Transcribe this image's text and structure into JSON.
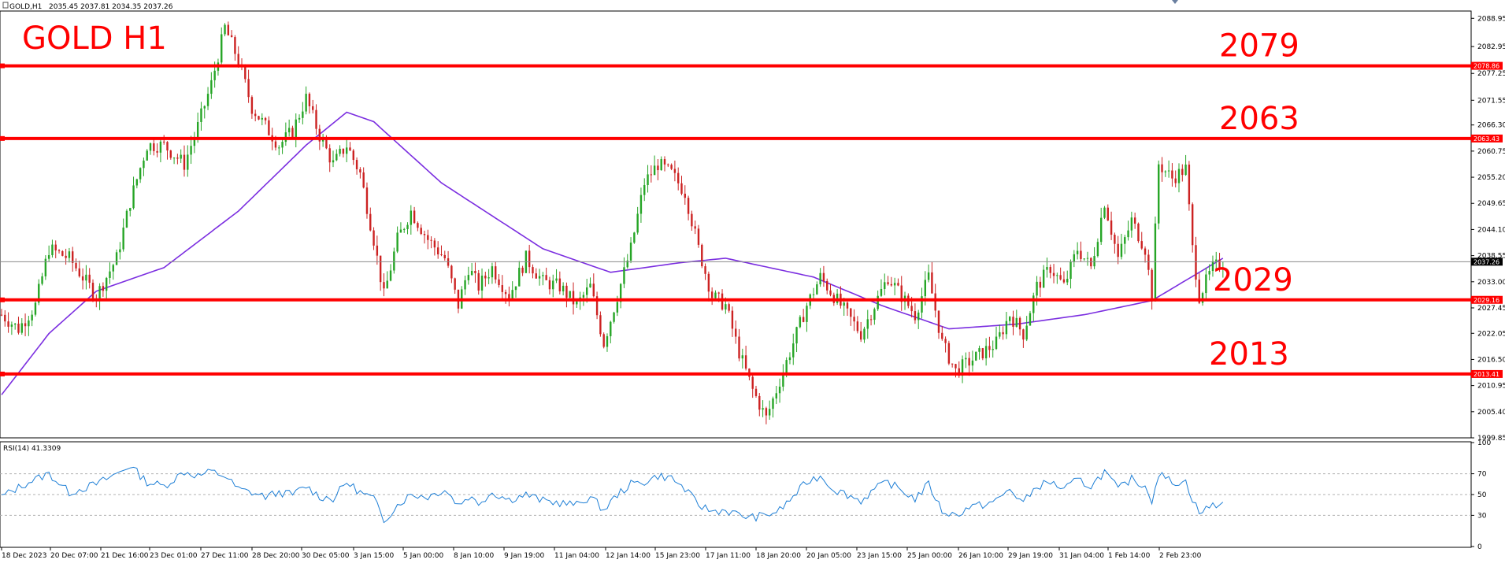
{
  "header": {
    "symbol": "GOLD,H1",
    "ohlc": "2035.45 2037.81 2034.35 2037.26"
  },
  "title": "GOLD H1",
  "levels": [
    {
      "label": "2079",
      "value": 2078.86,
      "tag": "2078.86"
    },
    {
      "label": "2063",
      "value": 2063.43,
      "tag": "2063.43"
    },
    {
      "label": "2029",
      "value": 2029.16,
      "tag": "2029.16"
    },
    {
      "label": "2013",
      "value": 2013.41,
      "tag": "2013.41"
    }
  ],
  "current_price": {
    "value": 2037.26,
    "tag": "2037.26"
  },
  "rsi": {
    "label": "RSI(14) 41.3309",
    "levels": [
      30,
      50,
      70
    ]
  },
  "colors": {
    "bull": "#26a526",
    "bear": "#cc2222",
    "ma": "#7b2ee0",
    "level": "#ff0000",
    "rsi": "#1e7fd6",
    "grid": "#b0b0b0"
  },
  "chart_data": {
    "type": "candlestick",
    "title": "GOLD H1",
    "ylim": [
      1999.85,
      2090.5
    ],
    "y_ticks": [
      "2088.95",
      "2082.95",
      "2077.25",
      "2071.55",
      "2066.30",
      "2060.75",
      "2055.20",
      "2049.65",
      "2044.10",
      "2038.55",
      "2033.00",
      "2027.45",
      "2022.05",
      "2016.50",
      "2010.95",
      "2005.40",
      "1999.85"
    ],
    "x_ticks": [
      "18 Dec 2023",
      "20 Dec 07:00",
      "21 Dec 16:00",
      "23 Dec 01:00",
      "27 Dec 11:00",
      "28 Dec 20:00",
      "30 Dec 05:00",
      "3 Jan 15:00",
      "5 Jan 00:00",
      "8 Jan 10:00",
      "9 Jan 19:00",
      "11 Jan 04:00",
      "12 Jan 14:00",
      "15 Jan 23:00",
      "17 Jan 11:00",
      "18 Jan 20:00",
      "20 Jan 05:00",
      "23 Jan 15:00",
      "25 Jan 00:00",
      "26 Jan 10:00",
      "29 Jan 19:00",
      "31 Jan 04:00",
      "1 Feb 14:00",
      "2 Feb 23:00"
    ],
    "close_path": [
      [
        0,
        2026
      ],
      [
        5,
        2023
      ],
      [
        10,
        2028
      ],
      [
        14,
        2040
      ],
      [
        20,
        2038
      ],
      [
        24,
        2034
      ],
      [
        28,
        2030
      ],
      [
        34,
        2038
      ],
      [
        38,
        2050
      ],
      [
        43,
        2062
      ],
      [
        48,
        2062
      ],
      [
        54,
        2058
      ],
      [
        58,
        2066
      ],
      [
        62,
        2075
      ],
      [
        66,
        2087
      ],
      [
        70,
        2080
      ],
      [
        74,
        2070
      ],
      [
        78,
        2066
      ],
      [
        82,
        2062
      ],
      [
        86,
        2065
      ],
      [
        90,
        2072
      ],
      [
        94,
        2064
      ],
      [
        98,
        2058
      ],
      [
        102,
        2062
      ],
      [
        106,
        2056
      ],
      [
        110,
        2042
      ],
      [
        113,
        2030
      ],
      [
        117,
        2042
      ],
      [
        121,
        2048
      ],
      [
        126,
        2042
      ],
      [
        131,
        2038
      ],
      [
        135,
        2028
      ],
      [
        138,
        2036
      ],
      [
        141,
        2032
      ],
      [
        145,
        2036
      ],
      [
        150,
        2030
      ],
      [
        155,
        2038
      ],
      [
        160,
        2033
      ],
      [
        165,
        2032
      ],
      [
        170,
        2028
      ],
      [
        174,
        2032
      ],
      [
        178,
        2020
      ],
      [
        182,
        2030
      ],
      [
        186,
        2040
      ],
      [
        190,
        2054
      ],
      [
        194,
        2058
      ],
      [
        198,
        2056
      ],
      [
        202,
        2052
      ],
      [
        206,
        2040
      ],
      [
        210,
        2030
      ],
      [
        214,
        2028
      ],
      [
        218,
        2018
      ],
      [
        222,
        2010
      ],
      [
        226,
        2004
      ],
      [
        230,
        2012
      ],
      [
        234,
        2020
      ],
      [
        238,
        2028
      ],
      [
        242,
        2034
      ],
      [
        246,
        2030
      ],
      [
        250,
        2026
      ],
      [
        254,
        2022
      ],
      [
        258,
        2028
      ],
      [
        262,
        2034
      ],
      [
        266,
        2030
      ],
      [
        270,
        2026
      ],
      [
        274,
        2034
      ],
      [
        278,
        2020
      ],
      [
        282,
        2014
      ],
      [
        286,
        2016
      ],
      [
        290,
        2018
      ],
      [
        294,
        2020
      ],
      [
        298,
        2026
      ],
      [
        302,
        2022
      ],
      [
        306,
        2032
      ],
      [
        310,
        2036
      ],
      [
        314,
        2032
      ],
      [
        318,
        2040
      ],
      [
        322,
        2036
      ],
      [
        326,
        2050
      ],
      [
        330,
        2038
      ],
      [
        334,
        2046
      ],
      [
        338,
        2040
      ],
      [
        340,
        2030
      ],
      [
        342,
        2058
      ],
      [
        346,
        2055
      ],
      [
        350,
        2057
      ],
      [
        352,
        2040
      ],
      [
        354,
        2030
      ],
      [
        358,
        2036
      ],
      [
        361,
        2037
      ]
    ],
    "ma_path": [
      [
        0,
        2009
      ],
      [
        14,
        2022
      ],
      [
        28,
        2031
      ],
      [
        48,
        2036
      ],
      [
        70,
        2048
      ],
      [
        90,
        2062
      ],
      [
        102,
        2069
      ],
      [
        110,
        2067
      ],
      [
        130,
        2054
      ],
      [
        160,
        2040
      ],
      [
        180,
        2035
      ],
      [
        200,
        2037
      ],
      [
        214,
        2038
      ],
      [
        240,
        2034
      ],
      [
        260,
        2028
      ],
      [
        280,
        2023
      ],
      [
        300,
        2024
      ],
      [
        320,
        2026
      ],
      [
        340,
        2029
      ],
      [
        361,
        2038
      ]
    ],
    "rsi_path": [
      [
        0,
        48
      ],
      [
        8,
        62
      ],
      [
        14,
        70
      ],
      [
        20,
        52
      ],
      [
        28,
        60
      ],
      [
        34,
        70
      ],
      [
        38,
        78
      ],
      [
        43,
        62
      ],
      [
        48,
        58
      ],
      [
        54,
        72
      ],
      [
        58,
        68
      ],
      [
        62,
        72
      ],
      [
        66,
        68
      ],
      [
        70,
        55
      ],
      [
        74,
        52
      ],
      [
        78,
        48
      ],
      [
        82,
        52
      ],
      [
        86,
        50
      ],
      [
        90,
        58
      ],
      [
        94,
        48
      ],
      [
        98,
        46
      ],
      [
        102,
        62
      ],
      [
        106,
        52
      ],
      [
        110,
        46
      ],
      [
        113,
        25
      ],
      [
        117,
        40
      ],
      [
        121,
        50
      ],
      [
        126,
        48
      ],
      [
        131,
        55
      ],
      [
        135,
        40
      ],
      [
        138,
        48
      ],
      [
        141,
        42
      ],
      [
        145,
        52
      ],
      [
        150,
        45
      ],
      [
        155,
        50
      ],
      [
        160,
        44
      ],
      [
        165,
        42
      ],
      [
        170,
        40
      ],
      [
        174,
        48
      ],
      [
        178,
        35
      ],
      [
        182,
        50
      ],
      [
        186,
        60
      ],
      [
        190,
        62
      ],
      [
        194,
        68
      ],
      [
        198,
        66
      ],
      [
        202,
        55
      ],
      [
        206,
        40
      ],
      [
        210,
        34
      ],
      [
        214,
        35
      ],
      [
        218,
        30
      ],
      [
        222,
        28
      ],
      [
        226,
        30
      ],
      [
        230,
        35
      ],
      [
        234,
        48
      ],
      [
        238,
        62
      ],
      [
        242,
        68
      ],
      [
        246,
        55
      ],
      [
        250,
        50
      ],
      [
        254,
        44
      ],
      [
        258,
        55
      ],
      [
        262,
        62
      ],
      [
        266,
        54
      ],
      [
        270,
        46
      ],
      [
        274,
        60
      ],
      [
        278,
        34
      ],
      [
        282,
        30
      ],
      [
        286,
        38
      ],
      [
        290,
        40
      ],
      [
        294,
        44
      ],
      [
        298,
        55
      ],
      [
        302,
        42
      ],
      [
        306,
        58
      ],
      [
        310,
        62
      ],
      [
        314,
        55
      ],
      [
        318,
        64
      ],
      [
        322,
        58
      ],
      [
        326,
        72
      ],
      [
        330,
        55
      ],
      [
        334,
        65
      ],
      [
        338,
        58
      ],
      [
        340,
        45
      ],
      [
        342,
        70
      ],
      [
        346,
        62
      ],
      [
        350,
        62
      ],
      [
        352,
        46
      ],
      [
        354,
        32
      ],
      [
        358,
        40
      ],
      [
        361,
        41
      ]
    ]
  }
}
